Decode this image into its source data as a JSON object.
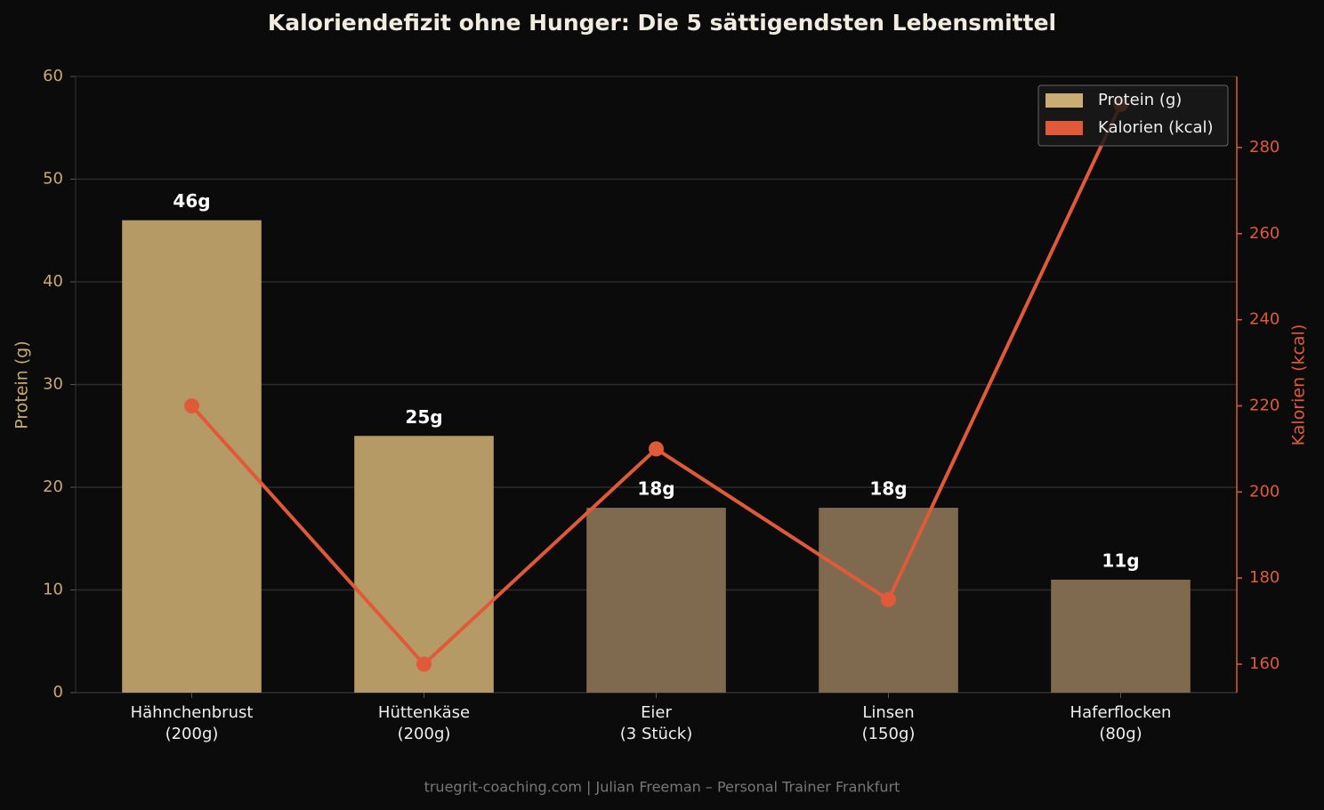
{
  "chart_data": {
    "type": "bar",
    "title": "Kaloriendefizit ohne Hunger: Die 5 sättigendsten Lebensmittel",
    "footer": "truegrit-coaching.com | Julian Freeman – Personal Trainer Frankfurt",
    "ylabel": "Protein (g)",
    "y2label": "Kalorien (kcal)",
    "categories": [
      "Hähnchenbrust\n(200g)",
      "Hüttenkäse\n(200g)",
      "Eier\n(3 Stück)",
      "Linsen\n(150g)",
      "Haferflocken\n(80g)"
    ],
    "series": [
      {
        "name": "Protein (g)",
        "type": "bar",
        "color": "#c9ad72",
        "bar_colors": [
          "#b59a65",
          "#b59a65",
          "#7f6a4f",
          "#7f6a4f",
          "#7f6a4f"
        ],
        "values": [
          46,
          25,
          18,
          18,
          11
        ],
        "value_labels": [
          "46g",
          "25g",
          "18g",
          "18g",
          "11g"
        ]
      },
      {
        "name": "Kalorien (kcal)",
        "type": "line",
        "axis": "y2",
        "color": "#e05a3a",
        "values": [
          220,
          160,
          210,
          175,
          290
        ]
      }
    ],
    "ylim": [
      0,
      60
    ],
    "yticks": [
      0,
      10,
      20,
      30,
      40,
      50,
      60
    ],
    "y2lim": [
      153.4,
      296.5
    ],
    "y2ticks": [
      160,
      180,
      200,
      220,
      240,
      260,
      280
    ],
    "grid": true,
    "legend": "upper right"
  }
}
